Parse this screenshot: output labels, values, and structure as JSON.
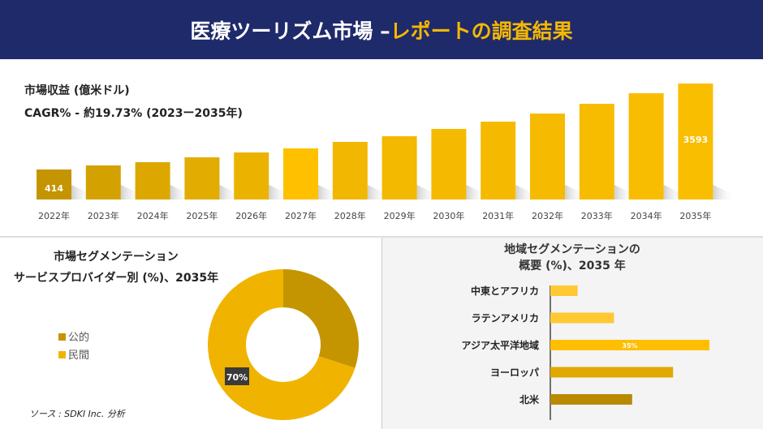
{
  "header": {
    "title_main": "医療ツーリズム市場 –",
    "title_accent": "レポートの調査結果"
  },
  "chart_data": [
    {
      "type": "bar",
      "title": "市場収益 (億米ドル)",
      "subtitle": "CAGR% - 約19.73% (2023ー2035年)",
      "categories": [
        "2022年",
        "2023年",
        "2024年",
        "2025年",
        "2026年",
        "2027年",
        "2028年",
        "2029年",
        "2030年",
        "2031年",
        "2032年",
        "2033年",
        "2034年",
        "2035年"
      ],
      "values": [
        414,
        564,
        684,
        864,
        1044,
        1194,
        1434,
        1644,
        1914,
        2184,
        2484,
        2844,
        3234,
        3593
      ],
      "data_labels": {
        "0": "414",
        "13": "3593"
      }
    },
    {
      "type": "pie",
      "title_line1": "市場セグメンテーション",
      "title_line2": "サービスプロバイダー別 (%)、2035年",
      "labels": [
        "公的",
        "民間"
      ],
      "values": [
        30,
        70
      ],
      "colors": [
        "#c49500",
        "#f0b400"
      ],
      "data_label": "70%"
    },
    {
      "type": "bar",
      "orientation": "horizontal",
      "title_line1": "地域セグメンテーションの",
      "title_line2": "概要 (%)、2035 年",
      "categories": [
        "中東とアフリカ",
        "ラテンアメリカ",
        "アジア太平洋地域",
        "ヨーロッパ",
        "北米"
      ],
      "values": [
        6,
        14,
        35,
        27,
        18
      ],
      "colors": [
        "#ffc933",
        "#ffc933",
        "#ffbf00",
        "#e0a800",
        "#b98a00"
      ],
      "data_label": "35%"
    }
  ],
  "source": "ソース : SDKI Inc. 分析"
}
